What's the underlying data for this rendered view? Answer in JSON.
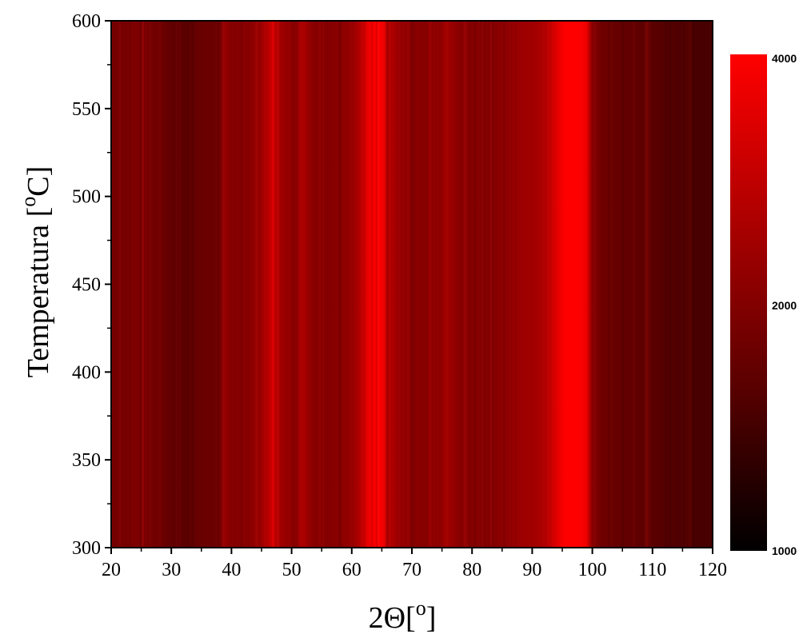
{
  "chart_data": {
    "type": "heatmap",
    "title": "",
    "xlabel": "2Θ[",
    "xlabel_superscript": "o",
    "xlabel_suffix": "]",
    "ylabel": "Temperatura [",
    "ylabel_superscript": "o",
    "ylabel_suffix": "C]",
    "xlim": [
      20,
      120
    ],
    "ylim": [
      300,
      600
    ],
    "x_ticks": [
      "20",
      "30",
      "40",
      "50",
      "60",
      "70",
      "80",
      "90",
      "100",
      "110",
      "120"
    ],
    "y_ticks": [
      "300",
      "350",
      "400",
      "450",
      "500",
      "550",
      "600"
    ],
    "colorbar": {
      "min": 1000,
      "max": 4000,
      "ticks": [
        "1000",
        "2000",
        "4000"
      ],
      "tick_values": [
        1000,
        2000,
        4000
      ],
      "color_low": "#000000",
      "color_mid": "#5a0000",
      "color_high": "#ff0000"
    },
    "intensity_by_2theta": {
      "x": [
        20,
        22,
        24,
        26,
        28,
        30,
        32,
        34,
        36,
        38,
        39,
        40,
        42,
        44,
        45,
        46,
        47,
        48,
        50,
        51,
        52,
        53,
        54,
        56,
        58,
        60,
        61,
        62,
        63,
        64,
        65,
        66,
        67,
        68,
        70,
        72,
        74,
        76,
        77,
        78,
        80,
        82,
        84,
        86,
        88,
        90,
        92,
        93,
        94,
        95,
        96,
        97,
        98,
        99,
        100,
        101,
        102,
        104,
        106,
        108,
        110,
        112,
        114,
        116,
        118,
        120
      ],
      "values": [
        2350,
        2400,
        2450,
        2350,
        2250,
        2100,
        2050,
        2150,
        2200,
        2250,
        2700,
        2500,
        2550,
        2650,
        2800,
        3100,
        3600,
        2900,
        2600,
        2750,
        3000,
        2650,
        2550,
        2500,
        2600,
        2700,
        2950,
        3400,
        3900,
        4000,
        3900,
        3300,
        2950,
        2700,
        2600,
        2550,
        2650,
        2850,
        2700,
        2550,
        2550,
        2450,
        2550,
        2650,
        2800,
        2850,
        3000,
        3250,
        3600,
        3900,
        4000,
        4000,
        3950,
        3800,
        2550,
        2350,
        2250,
        2150,
        2100,
        2050,
        2000,
        1950,
        1900,
        1850,
        1800,
        1800
      ]
    }
  }
}
